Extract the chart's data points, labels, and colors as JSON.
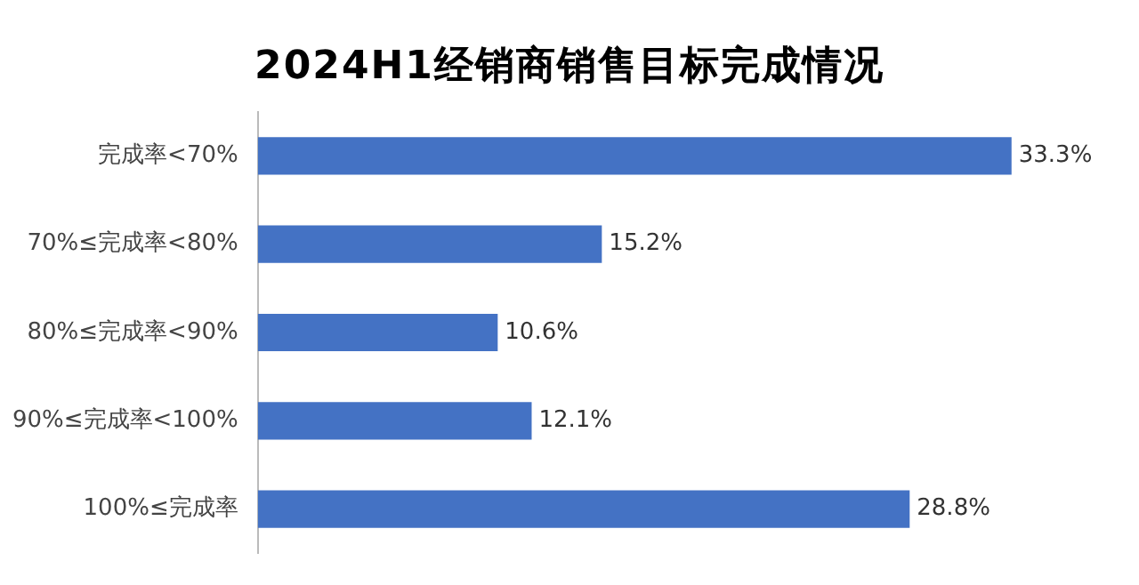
{
  "chart_data": {
    "type": "bar",
    "orientation": "horizontal",
    "title": "2024H1经销商销售目标完成情况",
    "categories": [
      "完成率<70%",
      "70%≤完成率<80%",
      "80%≤完成率<90%",
      "90%≤完成率<100%",
      "100%≤完成率"
    ],
    "values": [
      33.3,
      15.2,
      10.6,
      12.1,
      28.8
    ],
    "value_labels": [
      "33.3%",
      "15.2%",
      "10.6%",
      "12.1%",
      "28.8%"
    ],
    "color": "#4472c4"
  }
}
